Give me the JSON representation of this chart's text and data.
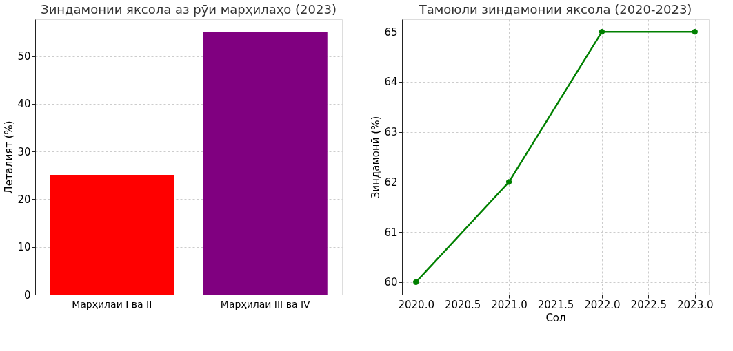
{
  "chart_data": [
    {
      "type": "bar",
      "title": "Зиндамонии яксола аз рӯи марҳилаҳо (2023)",
      "ylabel": "Леталият (%)",
      "categories": [
        "Марҳилаи I ва II",
        "Марҳилаи III ва IV"
      ],
      "values": [
        25,
        55
      ],
      "colors": [
        "#ff0000",
        "#800080"
      ],
      "ylim": [
        0,
        57.75
      ],
      "yticks": [
        0,
        10,
        20,
        30,
        40,
        50
      ],
      "grid": true
    },
    {
      "type": "line",
      "title": "Тамоюли зиндамонии яксола (2020-2023)",
      "xlabel": "Сол",
      "ylabel": "Зиндамонӣ (%)",
      "x": [
        2020,
        2021,
        2022,
        2023
      ],
      "series": [
        {
          "color": "#008000",
          "values": [
            60,
            62,
            65,
            65
          ]
        }
      ],
      "xlim": [
        2019.85,
        2023.15
      ],
      "xticks": [
        {
          "value": 2020,
          "label": "2020.0"
        },
        {
          "value": 2020.5,
          "label": "2020.5"
        },
        {
          "value": 2021,
          "label": "2021.0"
        },
        {
          "value": 2021.5,
          "label": "2021.5"
        },
        {
          "value": 2022,
          "label": "2022.0"
        },
        {
          "value": 2022.5,
          "label": "2022.5"
        },
        {
          "value": 2023,
          "label": "2023.0"
        }
      ],
      "ylim": [
        59.75,
        65.25
      ],
      "yticks": [
        60,
        61,
        62,
        63,
        64,
        65
      ],
      "grid": true,
      "marker": "circle"
    }
  ]
}
